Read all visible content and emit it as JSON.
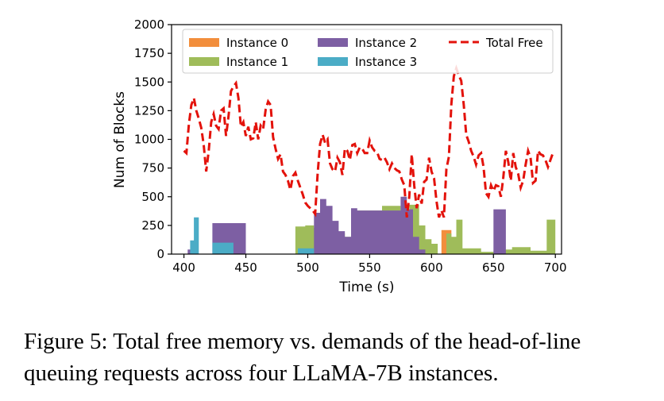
{
  "chart_data": {
    "type": "area",
    "xlabel": "Time (s)",
    "ylabel": "Num of Blocks",
    "xlim": [
      390,
      705
    ],
    "ylim": [
      0,
      2000
    ],
    "xticks": [
      400,
      450,
      500,
      550,
      600,
      650,
      700
    ],
    "yticks": [
      0,
      250,
      500,
      750,
      1000,
      1250,
      1500,
      1750,
      2000
    ],
    "grid": false,
    "legend_position": "top",
    "series": [
      {
        "name": "Instance 0",
        "color": "#f28e3c",
        "style": "step-stacked",
        "points": [
          [
            400,
            0
          ],
          [
            513,
            0
          ],
          [
            513,
            110
          ],
          [
            520,
            110
          ],
          [
            520,
            130
          ],
          [
            540,
            130
          ],
          [
            540,
            110
          ],
          [
            575,
            110
          ],
          [
            575,
            160
          ],
          [
            582,
            160
          ],
          [
            582,
            100
          ],
          [
            588,
            100
          ],
          [
            588,
            0
          ],
          [
            608,
            0
          ],
          [
            608,
            210
          ],
          [
            616,
            210
          ],
          [
            616,
            0
          ],
          [
            700,
            0
          ]
        ]
      },
      {
        "name": "Instance 1",
        "color": "#9fbc5a",
        "style": "step-stacked",
        "points": [
          [
            400,
            0
          ],
          [
            490,
            0
          ],
          [
            490,
            240
          ],
          [
            498,
            240
          ],
          [
            498,
            250
          ],
          [
            505,
            250
          ],
          [
            505,
            230
          ],
          [
            512,
            230
          ],
          [
            512,
            210
          ],
          [
            520,
            210
          ],
          [
            520,
            140
          ],
          [
            525,
            140
          ],
          [
            525,
            180
          ],
          [
            530,
            180
          ],
          [
            530,
            150
          ],
          [
            535,
            150
          ],
          [
            535,
            300
          ],
          [
            540,
            300
          ],
          [
            540,
            380
          ],
          [
            560,
            380
          ],
          [
            560,
            420
          ],
          [
            575,
            420
          ],
          [
            575,
            370
          ],
          [
            582,
            370
          ],
          [
            582,
            430
          ],
          [
            590,
            430
          ],
          [
            590,
            250
          ],
          [
            595,
            250
          ],
          [
            595,
            130
          ],
          [
            600,
            130
          ],
          [
            600,
            90
          ],
          [
            605,
            90
          ],
          [
            605,
            0
          ],
          [
            612,
            0
          ],
          [
            612,
            180
          ],
          [
            616,
            180
          ],
          [
            616,
            150
          ],
          [
            620,
            150
          ],
          [
            620,
            300
          ],
          [
            625,
            300
          ],
          [
            625,
            50
          ],
          [
            640,
            50
          ],
          [
            640,
            20
          ],
          [
            655,
            20
          ],
          [
            655,
            40
          ],
          [
            665,
            40
          ],
          [
            665,
            60
          ],
          [
            680,
            60
          ],
          [
            680,
            30
          ],
          [
            693,
            30
          ],
          [
            693,
            300
          ],
          [
            700,
            300
          ]
        ]
      },
      {
        "name": "Instance 2",
        "color": "#7d5fa3",
        "style": "step-stacked",
        "points": [
          [
            400,
            0
          ],
          [
            403,
            0
          ],
          [
            403,
            40
          ],
          [
            410,
            40
          ],
          [
            410,
            0
          ],
          [
            420,
            0
          ],
          [
            420,
            0
          ],
          [
            423,
            0
          ],
          [
            423,
            270
          ],
          [
            450,
            270
          ],
          [
            450,
            0
          ],
          [
            492,
            0
          ],
          [
            492,
            0
          ],
          [
            505,
            0
          ],
          [
            505,
            360
          ],
          [
            510,
            360
          ],
          [
            510,
            480
          ],
          [
            515,
            480
          ],
          [
            515,
            420
          ],
          [
            520,
            420
          ],
          [
            520,
            290
          ],
          [
            525,
            290
          ],
          [
            525,
            200
          ],
          [
            530,
            200
          ],
          [
            530,
            150
          ],
          [
            535,
            150
          ],
          [
            535,
            400
          ],
          [
            540,
            400
          ],
          [
            540,
            380
          ],
          [
            560,
            380
          ],
          [
            560,
            380
          ],
          [
            575,
            380
          ],
          [
            575,
            500
          ],
          [
            580,
            500
          ],
          [
            580,
            390
          ],
          [
            585,
            390
          ],
          [
            585,
            150
          ],
          [
            590,
            150
          ],
          [
            590,
            40
          ],
          [
            595,
            40
          ],
          [
            595,
            0
          ],
          [
            650,
            0
          ],
          [
            650,
            390
          ],
          [
            660,
            390
          ],
          [
            660,
            0
          ],
          [
            700,
            0
          ]
        ]
      },
      {
        "name": "Instance 3",
        "color": "#4bacc6",
        "style": "step-stacked",
        "points": [
          [
            400,
            0
          ],
          [
            405,
            0
          ],
          [
            405,
            120
          ],
          [
            408,
            120
          ],
          [
            408,
            320
          ],
          [
            412,
            320
          ],
          [
            412,
            0
          ],
          [
            415,
            0
          ],
          [
            415,
            0
          ],
          [
            423,
            0
          ],
          [
            423,
            100
          ],
          [
            440,
            100
          ],
          [
            440,
            0
          ],
          [
            450,
            0
          ],
          [
            450,
            0
          ],
          [
            457,
            0
          ],
          [
            457,
            0
          ],
          [
            470,
            0
          ],
          [
            470,
            0
          ],
          [
            482,
            0
          ],
          [
            482,
            0
          ],
          [
            492,
            0
          ],
          [
            492,
            50
          ],
          [
            505,
            50
          ],
          [
            505,
            0
          ],
          [
            512,
            0
          ],
          [
            512,
            0
          ],
          [
            515,
            0
          ],
          [
            515,
            0
          ],
          [
            530,
            0
          ],
          [
            530,
            0
          ],
          [
            535,
            0
          ],
          [
            535,
            0
          ],
          [
            545,
            0
          ],
          [
            545,
            0
          ],
          [
            560,
            0
          ],
          [
            560,
            0
          ],
          [
            568,
            0
          ],
          [
            568,
            0
          ],
          [
            583,
            0
          ],
          [
            583,
            0
          ],
          [
            590,
            0
          ],
          [
            590,
            0
          ],
          [
            700,
            0
          ]
        ]
      },
      {
        "name": "Total Free",
        "color": "#e3120b",
        "style": "dashed-line",
        "points": [
          [
            400,
            900
          ],
          [
            402,
            880
          ],
          [
            404,
            1130
          ],
          [
            406,
            1300
          ],
          [
            408,
            1360
          ],
          [
            410,
            1250
          ],
          [
            412,
            1180
          ],
          [
            414,
            1100
          ],
          [
            416,
            950
          ],
          [
            418,
            720
          ],
          [
            420,
            900
          ],
          [
            422,
            1150
          ],
          [
            424,
            1220
          ],
          [
            426,
            1120
          ],
          [
            428,
            1090
          ],
          [
            430,
            1250
          ],
          [
            432,
            1270
          ],
          [
            434,
            1030
          ],
          [
            436,
            1200
          ],
          [
            438,
            1420
          ],
          [
            440,
            1460
          ],
          [
            442,
            1490
          ],
          [
            444,
            1360
          ],
          [
            446,
            1110
          ],
          [
            448,
            1150
          ],
          [
            450,
            1030
          ],
          [
            452,
            1110
          ],
          [
            454,
            1000
          ],
          [
            456,
            1010
          ],
          [
            458,
            1150
          ],
          [
            460,
            1000
          ],
          [
            462,
            1120
          ],
          [
            464,
            1090
          ],
          [
            466,
            1260
          ],
          [
            468,
            1330
          ],
          [
            470,
            1300
          ],
          [
            472,
            1020
          ],
          [
            474,
            920
          ],
          [
            476,
            830
          ],
          [
            478,
            870
          ],
          [
            480,
            720
          ],
          [
            482,
            690
          ],
          [
            484,
            640
          ],
          [
            486,
            560
          ],
          [
            488,
            680
          ],
          [
            490,
            710
          ],
          [
            492,
            640
          ],
          [
            494,
            580
          ],
          [
            496,
            520
          ],
          [
            498,
            450
          ],
          [
            500,
            420
          ],
          [
            502,
            400
          ],
          [
            504,
            380
          ],
          [
            506,
            350
          ],
          [
            508,
            700
          ],
          [
            510,
            960
          ],
          [
            512,
            1040
          ],
          [
            514,
            970
          ],
          [
            516,
            1000
          ],
          [
            518,
            790
          ],
          [
            520,
            740
          ],
          [
            522,
            720
          ],
          [
            524,
            840
          ],
          [
            526,
            800
          ],
          [
            528,
            690
          ],
          [
            530,
            920
          ],
          [
            532,
            900
          ],
          [
            534,
            820
          ],
          [
            536,
            950
          ],
          [
            538,
            960
          ],
          [
            540,
            880
          ],
          [
            542,
            930
          ],
          [
            544,
            920
          ],
          [
            546,
            880
          ],
          [
            548,
            880
          ],
          [
            550,
            990
          ],
          [
            552,
            930
          ],
          [
            554,
            900
          ],
          [
            556,
            890
          ],
          [
            558,
            830
          ],
          [
            560,
            820
          ],
          [
            562,
            840
          ],
          [
            564,
            800
          ],
          [
            566,
            740
          ],
          [
            568,
            790
          ],
          [
            570,
            750
          ],
          [
            572,
            730
          ],
          [
            574,
            720
          ],
          [
            576,
            650
          ],
          [
            578,
            600
          ],
          [
            580,
            320
          ],
          [
            582,
            500
          ],
          [
            584,
            870
          ],
          [
            586,
            600
          ],
          [
            588,
            400
          ],
          [
            590,
            520
          ],
          [
            592,
            440
          ],
          [
            594,
            630
          ],
          [
            596,
            650
          ],
          [
            598,
            840
          ],
          [
            600,
            720
          ],
          [
            602,
            660
          ],
          [
            604,
            460
          ],
          [
            606,
            320
          ],
          [
            608,
            380
          ],
          [
            610,
            320
          ],
          [
            612,
            740
          ],
          [
            614,
            850
          ],
          [
            616,
            1310
          ],
          [
            618,
            1550
          ],
          [
            620,
            1620
          ],
          [
            622,
            1560
          ],
          [
            624,
            1510
          ],
          [
            626,
            1300
          ],
          [
            628,
            1040
          ],
          [
            630,
            980
          ],
          [
            632,
            900
          ],
          [
            634,
            850
          ],
          [
            636,
            780
          ],
          [
            638,
            860
          ],
          [
            640,
            880
          ],
          [
            642,
            760
          ],
          [
            644,
            530
          ],
          [
            646,
            500
          ],
          [
            648,
            600
          ],
          [
            650,
            550
          ],
          [
            652,
            600
          ],
          [
            654,
            590
          ],
          [
            656,
            500
          ],
          [
            658,
            670
          ],
          [
            660,
            900
          ],
          [
            662,
            800
          ],
          [
            664,
            640
          ],
          [
            666,
            880
          ],
          [
            668,
            760
          ],
          [
            670,
            700
          ],
          [
            672,
            580
          ],
          [
            674,
            640
          ],
          [
            676,
            780
          ],
          [
            678,
            900
          ],
          [
            680,
            840
          ],
          [
            682,
            620
          ],
          [
            684,
            640
          ],
          [
            686,
            900
          ],
          [
            688,
            870
          ],
          [
            690,
            860
          ],
          [
            692,
            820
          ],
          [
            694,
            760
          ],
          [
            696,
            820
          ],
          [
            698,
            880
          ],
          [
            700,
            880
          ]
        ]
      }
    ]
  },
  "caption": {
    "line1": "Figure 5: Total free memory vs. demands of the head-of-line",
    "line2": "queuing requests across four LLaMA-7B instances."
  }
}
